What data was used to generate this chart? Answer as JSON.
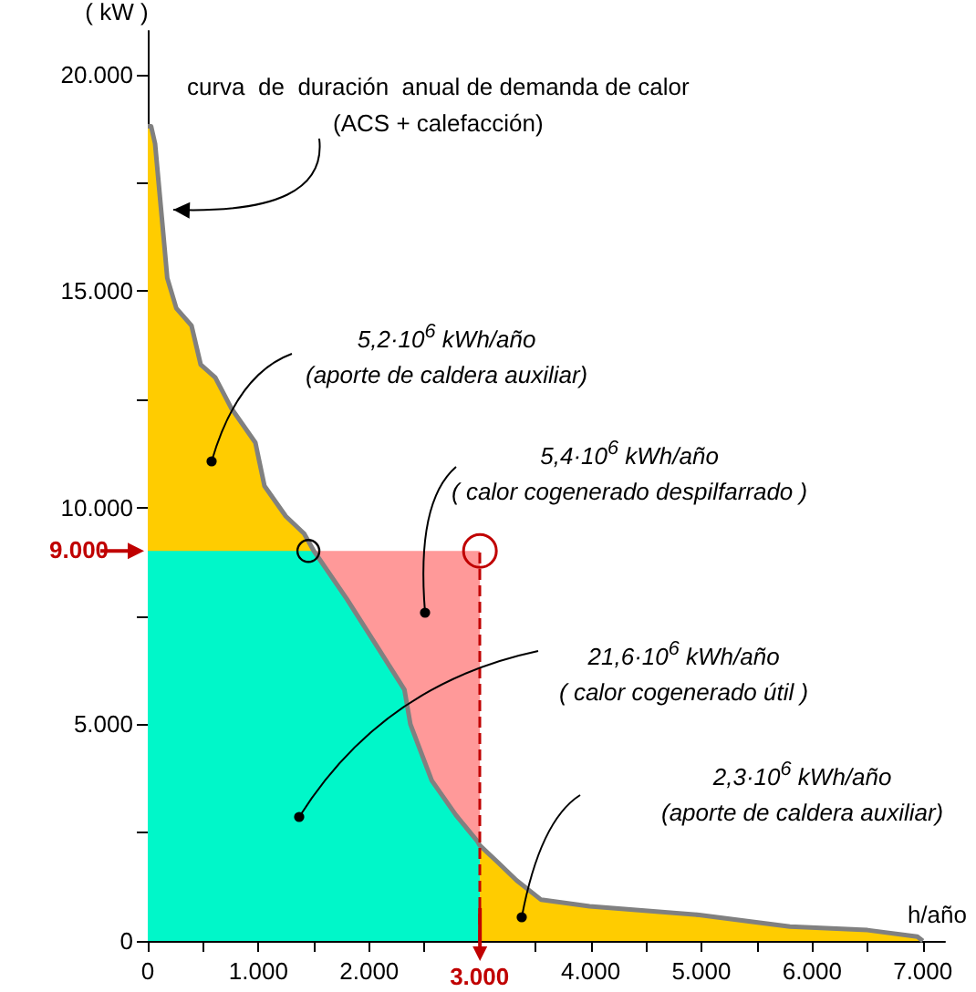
{
  "chart_data": {
    "type": "area",
    "ylabel": "( kW )",
    "xlabel": "h/año",
    "xlim": [
      0,
      7200
    ],
    "ylim": [
      0,
      21000
    ],
    "xticks": [
      0,
      {
        "value": 500,
        "label": null
      },
      {
        "value": 1000,
        "label": "1.000"
      },
      {
        "value": 1500,
        "label": null
      },
      {
        "value": 2000,
        "label": "2.000"
      },
      {
        "value": 2500,
        "label": null
      },
      {
        "value": 3000,
        "label": null
      },
      {
        "value": 3500,
        "label": null
      },
      {
        "value": 4000,
        "label": "4.000"
      },
      {
        "value": 4500,
        "label": null
      },
      {
        "value": 5000,
        "label": "5.000"
      },
      {
        "value": 5500,
        "label": null
      },
      {
        "value": 6000,
        "label": "6.000"
      },
      {
        "value": 6500,
        "label": null
      },
      {
        "value": 7000,
        "label": "7.000"
      }
    ],
    "yticks": [
      0,
      {
        "value": 2500,
        "label": null
      },
      {
        "value": 5000,
        "label": "5.000"
      },
      {
        "value": 7500,
        "label": null
      },
      {
        "value": 10000,
        "label": "10.000"
      },
      {
        "value": 12500,
        "label": null
      },
      {
        "value": 15000,
        "label": "15.000"
      },
      {
        "value": 17500,
        "label": null
      },
      {
        "value": 20000,
        "label": "20.000"
      }
    ],
    "series": [
      {
        "color": "#ffcc00",
        "x": [
          0,
          30,
          66,
          148,
          176,
          258,
          395,
          478,
          610,
          753,
          972,
          1054,
          1247,
          1412,
          1500
        ],
        "values": [
          18800,
          18800,
          18400,
          16100,
          15300,
          14600,
          14200,
          13300,
          13000,
          12300,
          11500,
          10500,
          9800,
          9400,
          9000
        ]
      },
      {
        "color": "#ff9999",
        "x": [
          1500,
          3000
        ],
        "values": [
          9000,
          9000
        ]
      },
      {
        "color": "#00f7c9",
        "x": [
          0,
          1500,
          1796,
          2070,
          2318,
          2372,
          2565,
          2784,
          2977,
          3000
        ],
        "values": [
          9000,
          9000,
          7900,
          6800,
          5800,
          5000,
          3700,
          2900,
          2300,
          2200
        ]
      },
      {
        "color": "#ffcc00",
        "x": [
          3000,
          3168,
          3330,
          3553,
          3990,
          4980,
          5800,
          6500,
          6950,
          7000
        ],
        "values": [
          2200,
          1800,
          1400,
          950,
          800,
          600,
          330,
          250,
          100,
          0
        ]
      },
      {
        "type": "line",
        "color": "#808080",
        "x": [
          0,
          30,
          66,
          148,
          176,
          258,
          395,
          478,
          610,
          753,
          972,
          1054,
          1247,
          1412,
          1500,
          1796,
          2070,
          2318,
          2372,
          2565,
          2784,
          2977,
          3000,
          3168,
          3330,
          3553,
          3990,
          4980,
          5800,
          6500,
          6950,
          7000
        ],
        "values": [
          18800,
          18800,
          18400,
          16100,
          15300,
          14600,
          14200,
          13300,
          13000,
          12300,
          11500,
          10500,
          9800,
          9400,
          9000,
          7900,
          6800,
          5800,
          5000,
          3700,
          2900,
          2300,
          2200,
          1800,
          1400,
          950,
          800,
          600,
          330,
          250,
          100,
          0
        ]
      }
    ],
    "ref_lines": [
      {
        "axis": "x",
        "value": 3000,
        "label": "3.000",
        "color": "#c00000",
        "line_style": "dashed"
      }
    ],
    "annotations": [
      "curva  de  duración  anual de demanda de calor\n(ACS + calefacción)",
      "5,2·10$^{6}$ kWh/año\n(aporte de caldera auxiliar)",
      "5,4·10$^{6}$ kWh/año\n( calor cogenerado despilfarrado )",
      "21,6·10$^{6}$ kWh/año\n( calor cogenerado útil )",
      "2,3·10$^{6}$ kWh/año\n(aporte de caldera auxiliar)",
      {
        "text": "9.000",
        "x": 0,
        "y": 9000
      }
    ],
    "grid": false
  }
}
